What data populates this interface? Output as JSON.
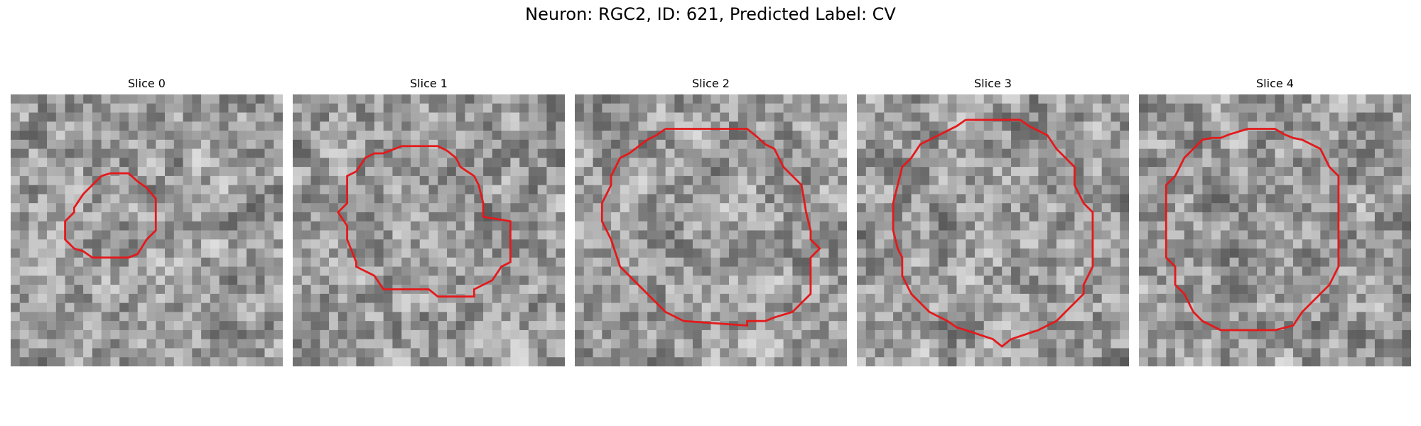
{
  "figure": {
    "title": "Neuron: RGC2, ID: 621, Predicted Label: CV",
    "contour_color": "#e31a1c"
  },
  "panels": [
    {
      "title": "Slice 0",
      "seed": 11
    },
    {
      "title": "Slice 1",
      "seed": 23
    },
    {
      "title": "Slice 2",
      "seed": 37
    },
    {
      "title": "Slice 3",
      "seed": 41
    },
    {
      "title": "Slice 4",
      "seed": 59
    }
  ]
}
